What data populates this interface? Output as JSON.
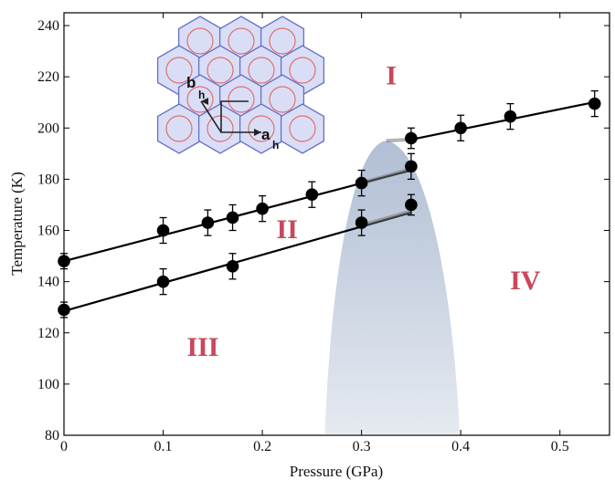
{
  "chart_data": {
    "type": "scatter",
    "xlabel": "Pressure (GPa)",
    "ylabel": "Temperature (K)",
    "xlim": [
      0,
      0.55
    ],
    "ylim": [
      80,
      245
    ],
    "x_ticks": [
      "0",
      "0.1",
      "0.2",
      "0.3",
      "0.4",
      "0.5"
    ],
    "y_ticks": [
      "80",
      "100",
      "120",
      "140",
      "160",
      "180",
      "200",
      "220",
      "240"
    ],
    "grid": false,
    "series": [
      {
        "marker": "circle",
        "points": [
          [
            0,
            148
          ],
          [
            0.1,
            160
          ],
          [
            0.145,
            163
          ],
          [
            0.17,
            165
          ],
          [
            0.2,
            168.5
          ],
          [
            0.25,
            174
          ],
          [
            0.3,
            178.5
          ],
          [
            0.35,
            185
          ]
        ],
        "errors": [
          3,
          5,
          5,
          5,
          5,
          5,
          5,
          5
        ]
      },
      {
        "marker": "circle",
        "points": [
          [
            0,
            129
          ],
          [
            0.1,
            140
          ],
          [
            0.17,
            146
          ],
          [
            0.3,
            163
          ],
          [
            0.35,
            170
          ]
        ],
        "errors": [
          3,
          5,
          5,
          5,
          4
        ]
      },
      {
        "marker": "circle",
        "points": [
          [
            0.35,
            196
          ],
          [
            0.4,
            200
          ],
          [
            0.45,
            204.5
          ],
          [
            0.535,
            209.5
          ]
        ],
        "errors": [
          4,
          5,
          5,
          5
        ]
      }
    ],
    "fit_lines": [
      {
        "from": [
          0,
          148
        ],
        "to": [
          0.35,
          183.5
        ]
      },
      {
        "from": [
          0,
          128.5
        ],
        "to": [
          0.35,
          167
        ]
      },
      {
        "from": [
          0.35,
          195.5
        ],
        "to": [
          0.54,
          210.5
        ]
      }
    ],
    "phase_labels": [
      {
        "text": "I",
        "x": 0.33,
        "y": 217
      },
      {
        "text": "II",
        "x": 0.225,
        "y": 157
      },
      {
        "text": "III",
        "x": 0.14,
        "y": 111
      },
      {
        "text": "IV",
        "x": 0.465,
        "y": 137
      }
    ],
    "inset": {
      "labels": {
        "b": "b",
        "b_sub": "h",
        "a": "a",
        "a_sub": "h"
      },
      "hex_fill": "#d9def6",
      "hex_stroke": "#6670c8",
      "circle_stroke": "#e07070"
    },
    "shaded_region_color": "#a3b3cc",
    "colors": {
      "phase_label": "#c9475a",
      "marker": "#000000"
    }
  }
}
